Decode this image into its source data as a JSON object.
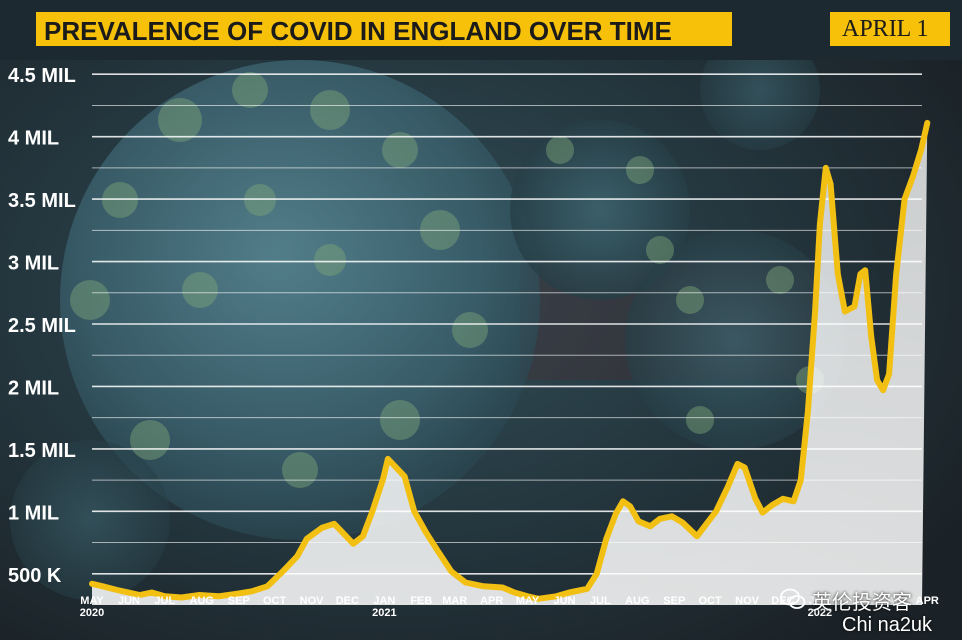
{
  "header": {
    "title": "PREVALENCE OF COVID IN ENGLAND OVER TIME",
    "date": "APRIL 1"
  },
  "colors": {
    "accent": "#f6c108",
    "line": "#f2c012",
    "background": "#1d2930",
    "grid": "#ffffff"
  },
  "watermark": {
    "line1": "英伦投资客",
    "line2": "Chi na2uk"
  },
  "chart_data": {
    "type": "area",
    "title": "PREVALENCE OF COVID IN ENGLAND OVER TIME",
    "xlabel": "",
    "ylabel": "",
    "ylim": [
      250000,
      4750000
    ],
    "yticks": [
      {
        "value": 500000,
        "label": "500 K"
      },
      {
        "value": 1000000,
        "label": "1 MIL"
      },
      {
        "value": 1500000,
        "label": "1.5 MIL"
      },
      {
        "value": 2000000,
        "label": "2 MIL"
      },
      {
        "value": 2500000,
        "label": "2.5 MIL"
      },
      {
        "value": 3000000,
        "label": "3 MIL"
      },
      {
        "value": 3500000,
        "label": "3.5 MIL"
      },
      {
        "value": 4000000,
        "label": "4 MIL"
      },
      {
        "value": 4500000,
        "label": "4.5 MIL"
      }
    ],
    "xlim": [
      "2020-05-01",
      "2022-04-10"
    ],
    "xticks": [
      {
        "date": "2020-05-01",
        "label": "MAY",
        "sublabel": "2020"
      },
      {
        "date": "2020-06-01",
        "label": "JUN"
      },
      {
        "date": "2020-07-01",
        "label": "JUL"
      },
      {
        "date": "2020-08-01",
        "label": "AUG"
      },
      {
        "date": "2020-09-01",
        "label": "SEP"
      },
      {
        "date": "2020-10-01",
        "label": "OCT"
      },
      {
        "date": "2020-11-01",
        "label": "NOV"
      },
      {
        "date": "2020-12-01",
        "label": "DEC"
      },
      {
        "date": "2021-01-01",
        "label": "JAN",
        "sublabel": "2021"
      },
      {
        "date": "2021-02-01",
        "label": "FEB"
      },
      {
        "date": "2021-03-01",
        "label": "MAR"
      },
      {
        "date": "2021-04-01",
        "label": "APR"
      },
      {
        "date": "2021-05-01",
        "label": "MAY"
      },
      {
        "date": "2021-06-01",
        "label": "JUN"
      },
      {
        "date": "2021-07-01",
        "label": "JUL"
      },
      {
        "date": "2021-08-01",
        "label": "AUG"
      },
      {
        "date": "2021-09-01",
        "label": "SEP"
      },
      {
        "date": "2021-10-01",
        "label": "OCT"
      },
      {
        "date": "2021-11-01",
        "label": "NOV"
      },
      {
        "date": "2021-12-01",
        "label": "DEC"
      },
      {
        "date": "2022-01-01",
        "label": "JAN",
        "sublabel": "2022"
      },
      {
        "date": "2022-02-01",
        "label": "FEB"
      },
      {
        "date": "2022-03-01",
        "label": "MAR"
      },
      {
        "date": "2022-04-01",
        "label": "APR"
      }
    ],
    "grid": true,
    "series": [
      {
        "points": [
          [
            "2020-05-01",
            420000
          ],
          [
            "2020-05-10",
            400000
          ],
          [
            "2020-05-22",
            370000
          ],
          [
            "2020-06-10",
            330000
          ],
          [
            "2020-06-20",
            350000
          ],
          [
            "2020-07-01",
            320000
          ],
          [
            "2020-07-15",
            310000
          ],
          [
            "2020-07-30",
            330000
          ],
          [
            "2020-08-15",
            320000
          ],
          [
            "2020-08-30",
            340000
          ],
          [
            "2020-09-12",
            360000
          ],
          [
            "2020-09-25",
            400000
          ],
          [
            "2020-10-08",
            520000
          ],
          [
            "2020-10-20",
            640000
          ],
          [
            "2020-10-28",
            780000
          ],
          [
            "2020-11-10",
            870000
          ],
          [
            "2020-11-20",
            900000
          ],
          [
            "2020-11-30",
            800000
          ],
          [
            "2020-12-06",
            740000
          ],
          [
            "2020-12-14",
            800000
          ],
          [
            "2020-12-22",
            1000000
          ],
          [
            "2020-12-31",
            1260000
          ],
          [
            "2021-01-04",
            1420000
          ],
          [
            "2021-01-10",
            1360000
          ],
          [
            "2021-01-18",
            1280000
          ],
          [
            "2021-01-26",
            1000000
          ],
          [
            "2021-02-05",
            830000
          ],
          [
            "2021-02-15",
            680000
          ],
          [
            "2021-02-26",
            520000
          ],
          [
            "2021-03-10",
            430000
          ],
          [
            "2021-03-25",
            400000
          ],
          [
            "2021-04-10",
            390000
          ],
          [
            "2021-04-20",
            350000
          ],
          [
            "2021-05-01",
            320000
          ],
          [
            "2021-05-10",
            300000
          ],
          [
            "2021-05-25",
            320000
          ],
          [
            "2021-06-05",
            350000
          ],
          [
            "2021-06-20",
            380000
          ],
          [
            "2021-06-28",
            500000
          ],
          [
            "2021-07-06",
            780000
          ],
          [
            "2021-07-14",
            980000
          ],
          [
            "2021-07-20",
            1080000
          ],
          [
            "2021-07-26",
            1040000
          ],
          [
            "2021-08-02",
            920000
          ],
          [
            "2021-08-12",
            880000
          ],
          [
            "2021-08-20",
            940000
          ],
          [
            "2021-08-30",
            960000
          ],
          [
            "2021-09-08",
            910000
          ],
          [
            "2021-09-20",
            800000
          ],
          [
            "2021-09-28",
            900000
          ],
          [
            "2021-10-06",
            1000000
          ],
          [
            "2021-10-16",
            1200000
          ],
          [
            "2021-10-24",
            1380000
          ],
          [
            "2021-10-30",
            1350000
          ],
          [
            "2021-11-08",
            1100000
          ],
          [
            "2021-11-14",
            990000
          ],
          [
            "2021-11-22",
            1050000
          ],
          [
            "2021-12-01",
            1100000
          ],
          [
            "2021-12-10",
            1080000
          ],
          [
            "2021-12-16",
            1250000
          ],
          [
            "2021-12-22",
            1800000
          ],
          [
            "2021-12-28",
            2600000
          ],
          [
            "2022-01-01",
            3300000
          ],
          [
            "2022-01-06",
            3750000
          ],
          [
            "2022-01-10",
            3620000
          ],
          [
            "2022-01-16",
            2900000
          ],
          [
            "2022-01-22",
            2600000
          ],
          [
            "2022-01-30",
            2640000
          ],
          [
            "2022-02-04",
            2900000
          ],
          [
            "2022-02-08",
            2930000
          ],
          [
            "2022-02-13",
            2400000
          ],
          [
            "2022-02-18",
            2050000
          ],
          [
            "2022-02-23",
            1970000
          ],
          [
            "2022-02-28",
            2100000
          ],
          [
            "2022-03-06",
            2900000
          ],
          [
            "2022-03-13",
            3500000
          ],
          [
            "2022-03-20",
            3680000
          ],
          [
            "2022-03-27",
            3900000
          ],
          [
            "2022-04-01",
            4110000
          ]
        ]
      }
    ]
  }
}
